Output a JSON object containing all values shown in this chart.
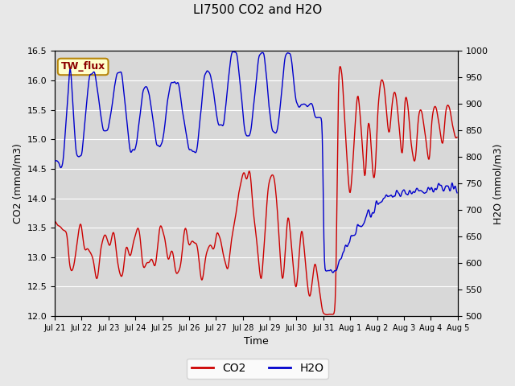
{
  "title": "LI7500 CO2 and H2O",
  "xlabel": "Time",
  "ylabel_left": "CO2 (mmol/m3)",
  "ylabel_right": "H2O (mmol/m3)",
  "ylim_left": [
    12.0,
    16.5
  ],
  "ylim_right": [
    500,
    1000
  ],
  "yticks_left": [
    12.0,
    12.5,
    13.0,
    13.5,
    14.0,
    14.5,
    15.0,
    15.5,
    16.0,
    16.5
  ],
  "yticks_right": [
    500,
    550,
    600,
    650,
    700,
    750,
    800,
    850,
    900,
    950,
    1000
  ],
  "co2_color": "#cc0000",
  "h2o_color": "#0000cc",
  "legend_co2": "CO2",
  "legend_h2o": "H2O",
  "annotation_text": "TW_flux",
  "annotation_color": "#8b0000",
  "annotation_bg": "#ffffcc",
  "annotation_border": "#b8860b",
  "bg_color": "#e8e8e8",
  "plot_bg": "#d8d8d8",
  "grid_color": "#ffffff",
  "xtick_labels": [
    "Jul 21",
    "Jul 22",
    "Jul 23",
    "Jul 24",
    "Jul 25",
    "Jul 26",
    "Jul 27",
    "Jul 28",
    "Jul 29",
    "Jul 30",
    "Jul 31",
    "Aug 1",
    "Aug 2",
    "Aug 3",
    "Aug 4",
    "Aug 5"
  ]
}
